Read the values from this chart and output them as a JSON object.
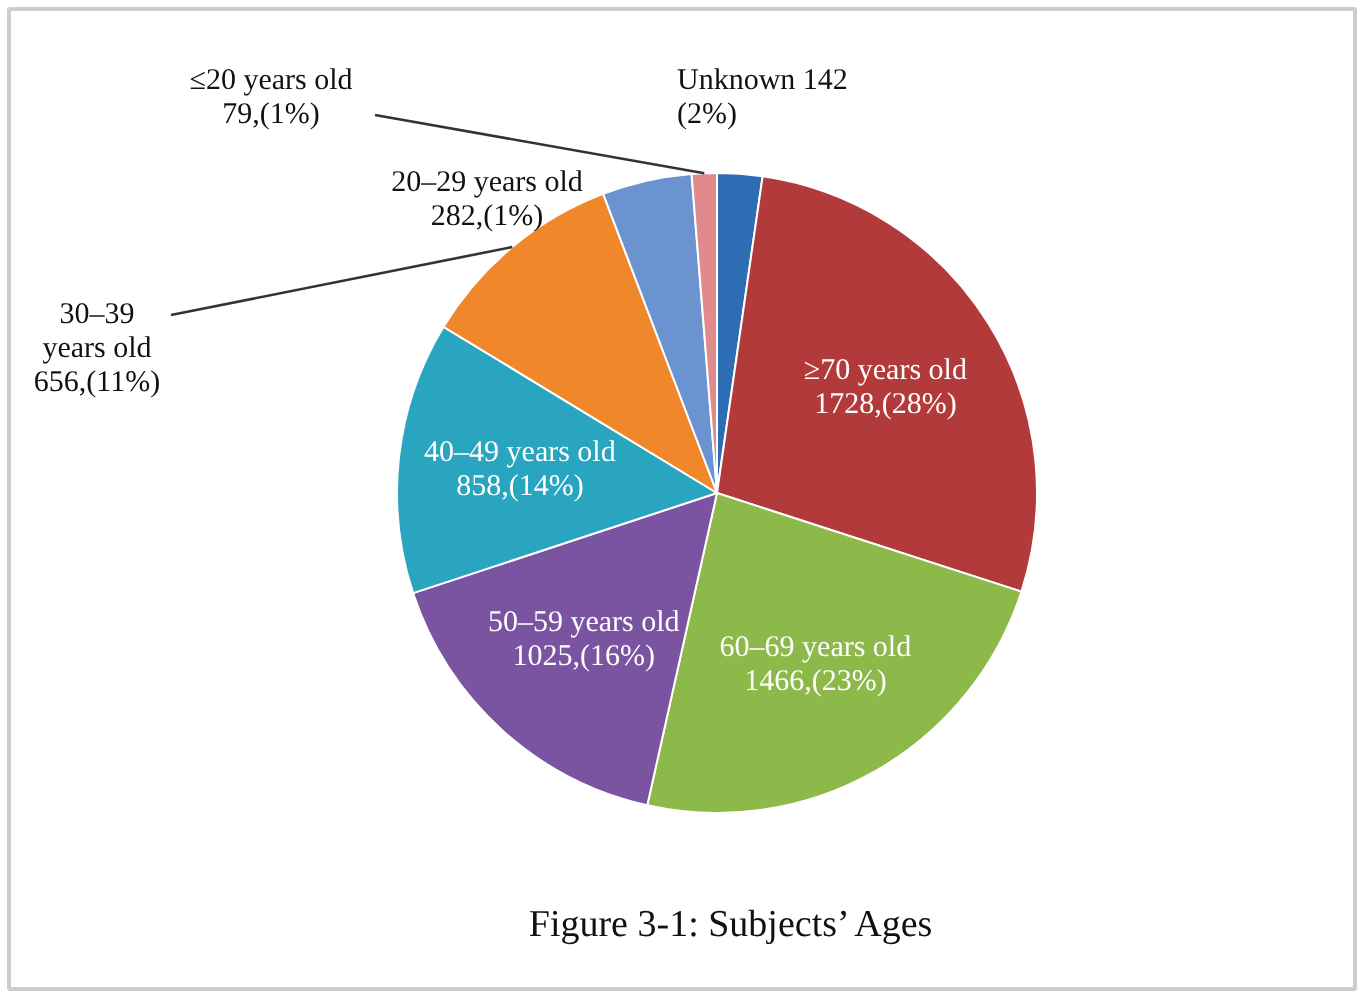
{
  "chart_data": {
    "type": "pie",
    "title": "Figure 3-1: Subjects’ Ages",
    "categories": [
      "Unknown",
      "≥70 years old",
      "60–69 years old",
      "50–59 years old",
      "40–49 years old",
      "30–39 years old",
      "20–29 years old",
      "≤20 years old"
    ],
    "values": [
      142,
      1728,
      1466,
      1025,
      858,
      656,
      282,
      79
    ],
    "colors": [
      "#2e6db4",
      "#b33a3a",
      "#8db84a",
      "#7a54a0",
      "#2aa5c0",
      "#f0872a",
      "#6a93d0",
      "#e08a8e"
    ],
    "value_labels": [
      "142 (2%)",
      "1728,(28%)",
      "1466,(23%)",
      "1025,(16%)",
      "858,(14%)",
      "656,(11%)",
      "282,(1%)",
      "79,(1%)"
    ]
  }
}
